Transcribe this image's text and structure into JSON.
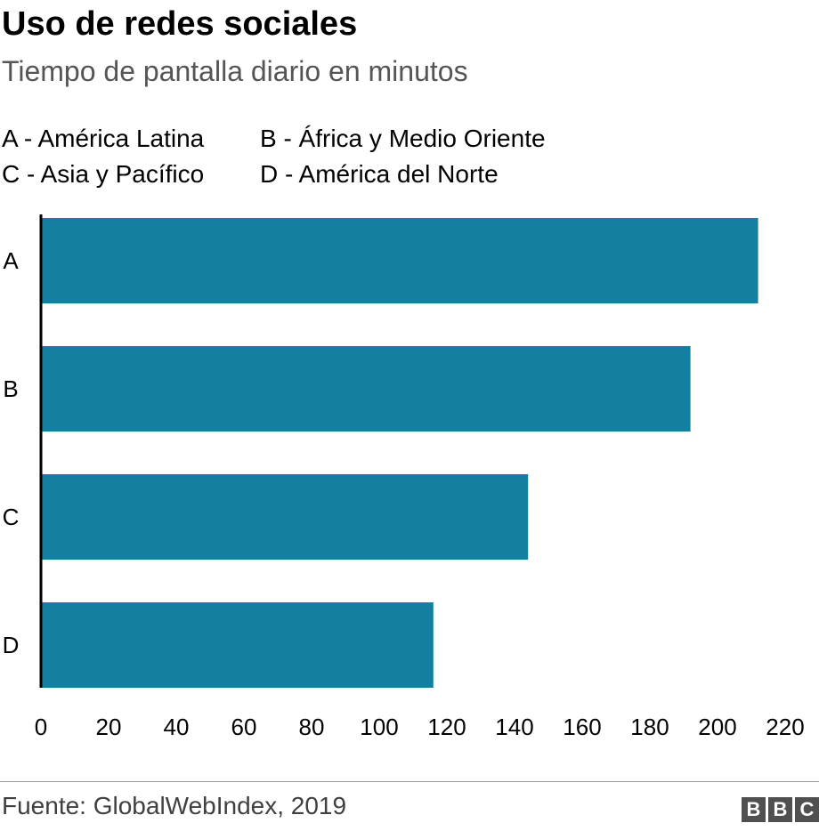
{
  "title": "Uso de redes sociales",
  "subtitle": "Tiempo de pantalla diario en minutos",
  "legend": [
    [
      "A - América Latina",
      "B - África y Medio Oriente"
    ],
    [
      "C - Asia y Pacífico",
      "D - América del Norte"
    ]
  ],
  "source": "Fuente: GlobalWebIndex, 2019",
  "logo": [
    "B",
    "B",
    "C"
  ],
  "colors": {
    "bar": "#1380a1",
    "axis": "#000000",
    "text": "#000000"
  },
  "chart_data": {
    "type": "bar",
    "orientation": "horizontal",
    "categories": [
      "A",
      "B",
      "C",
      "D"
    ],
    "values": [
      212,
      192,
      144,
      116
    ],
    "xlim": [
      0,
      220
    ],
    "xticks": [
      "0",
      "20",
      "40",
      "60",
      "80",
      "100",
      "120",
      "140",
      "160",
      "180",
      "200",
      "220"
    ],
    "grid": false
  }
}
